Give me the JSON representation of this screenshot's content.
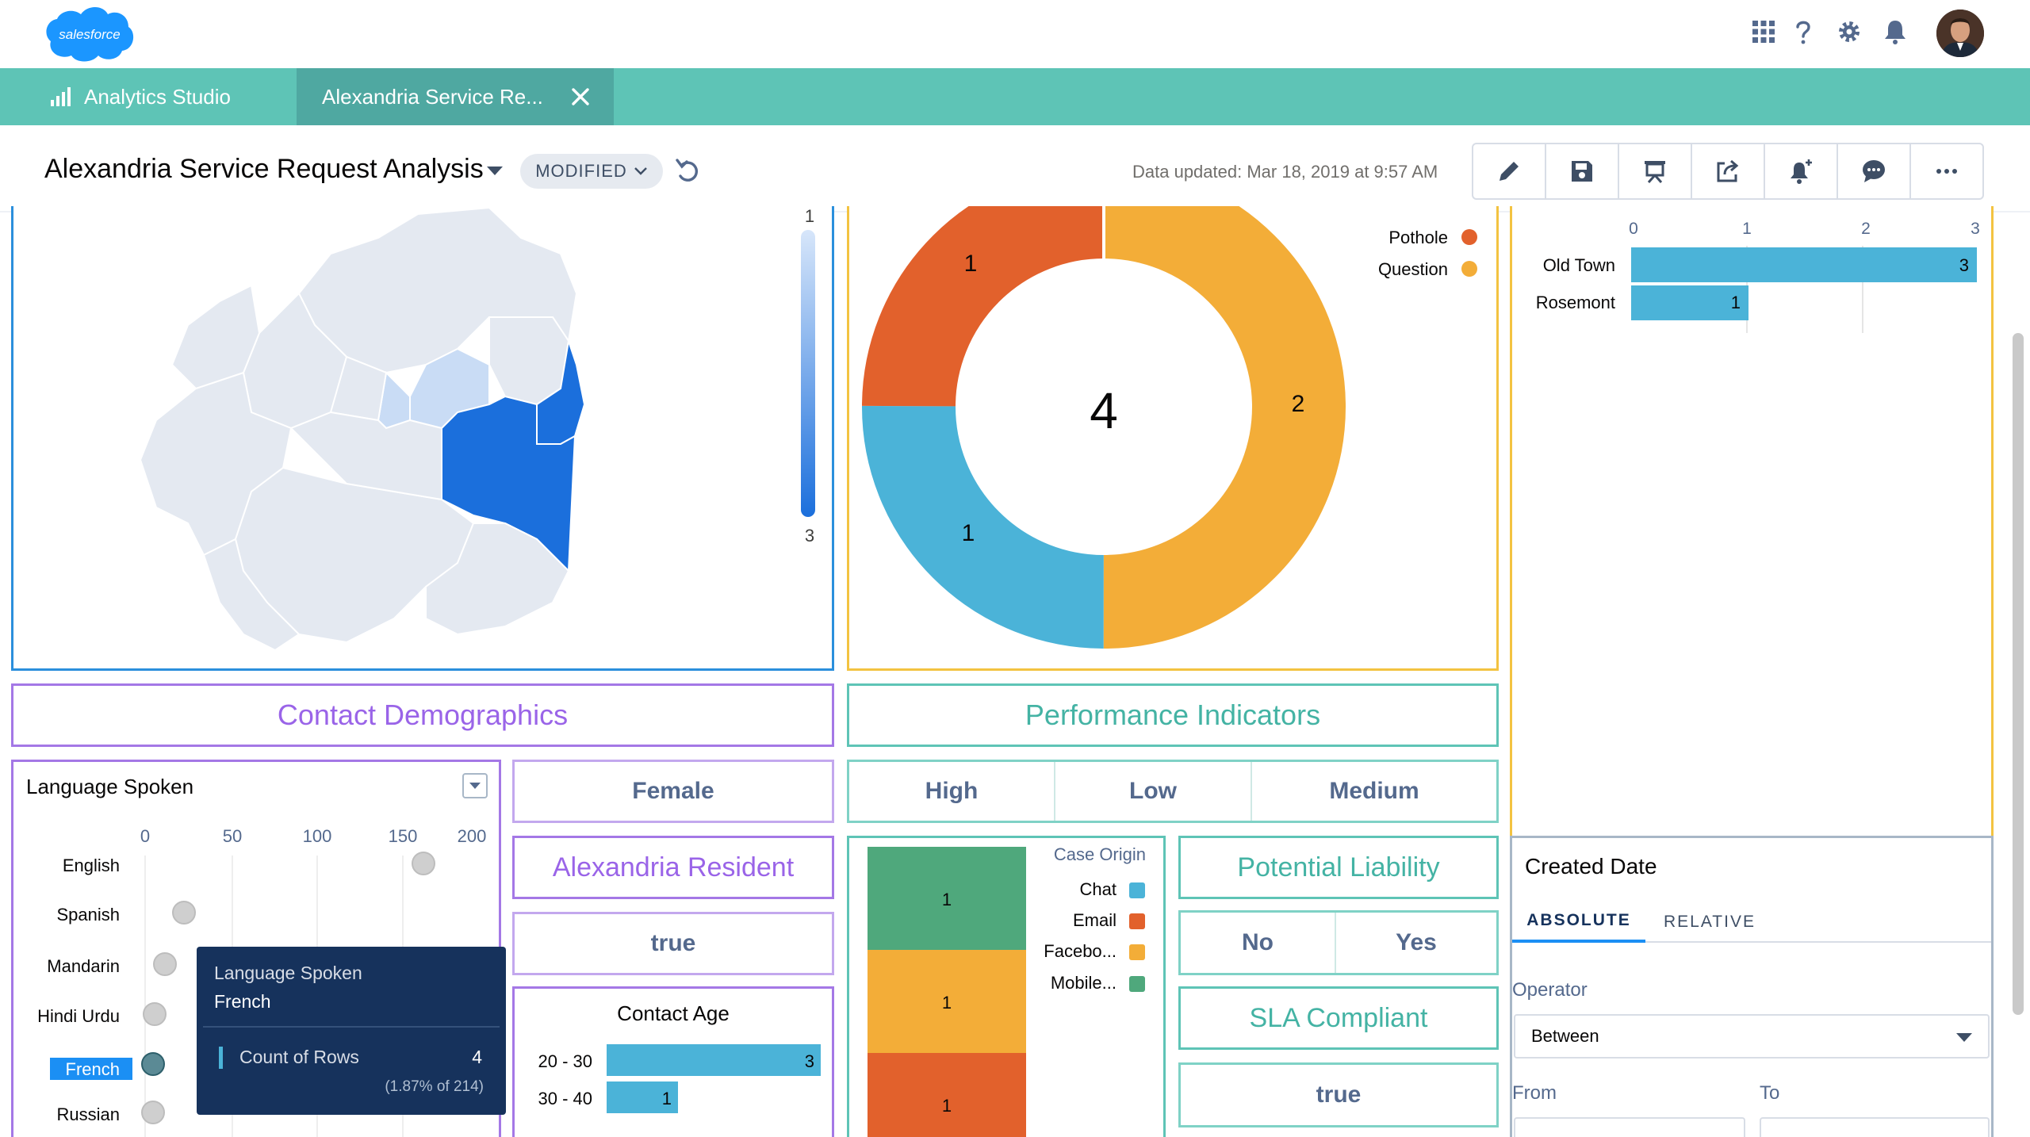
{
  "global_header": {
    "logo_text": "salesforce",
    "icons": [
      "app-launcher-icon",
      "help-icon",
      "setup-gear-icon",
      "notifications-bell-icon"
    ]
  },
  "tabs": [
    {
      "label": "Analytics Studio",
      "icon": "bar-chart-icon"
    },
    {
      "label": "Alexandria Service Re...",
      "icon": "close-icon",
      "active": true
    }
  ],
  "dashboard": {
    "title": "Alexandria Service Request Analysis",
    "status": "MODIFIED",
    "data_updated": "Data updated: Mar 18, 2019 at 9:57 AM",
    "toolbar_icons": [
      "edit-pencil-icon",
      "save-icon",
      "present-icon",
      "share-icon",
      "subscribe-bell-icon",
      "comment-icon",
      "more-icon"
    ]
  },
  "map": {
    "legend_max": "1",
    "legend_min": "3",
    "colors": {
      "highlight": "#1b6fdc",
      "light": "#c9dcf5",
      "base": "#e4e9f1"
    }
  },
  "donut": {
    "center": "4",
    "legend": [
      {
        "label": "Pothole",
        "color": "#e2612c"
      },
      {
        "label": "Question",
        "color": "#f3ad38"
      }
    ]
  },
  "neighborhood_bar": {
    "ticks": [
      "0",
      "1",
      "2",
      "3"
    ],
    "rows": [
      {
        "label": "Old Town",
        "value": "3"
      },
      {
        "label": "Rosemont",
        "value": "1"
      }
    ]
  },
  "sections": {
    "contact_demographics": "Contact Demographics",
    "performance_indicators": "Performance Indicators"
  },
  "language_chart": {
    "title": "Language Spoken",
    "ticks": [
      "0",
      "50",
      "100",
      "150",
      "200"
    ],
    "rows": [
      {
        "label": "English"
      },
      {
        "label": "Spanish"
      },
      {
        "label": "Mandarin"
      },
      {
        "label": "Hindi Urdu"
      },
      {
        "label": "French",
        "selected": true
      },
      {
        "label": "Russian"
      }
    ],
    "tooltip": {
      "dimension": "Language Spoken",
      "value": "French",
      "measure": "Count of Rows",
      "count": "4",
      "percent": "(1.87% of 214)"
    }
  },
  "demographic_filters": {
    "gender": "Female",
    "resident_header": "Alexandria Resident",
    "resident_value": "true",
    "contact_age_title": "Contact Age",
    "contact_age_rows": [
      {
        "label": "20 - 30",
        "value": "3"
      },
      {
        "label": "30 - 40",
        "value": "1"
      }
    ]
  },
  "priority_toggles": [
    "High",
    "Low",
    "Medium"
  ],
  "case_origin": {
    "title": "Case Origin",
    "legend": [
      {
        "label": "Chat",
        "color": "#4bb3d8"
      },
      {
        "label": "Email",
        "color": "#e2612c"
      },
      {
        "label": "Facebo...",
        "color": "#f3ad38"
      },
      {
        "label": "Mobile...",
        "color": "#4fa87c"
      }
    ],
    "segment_labels": [
      "1",
      "1",
      "1"
    ]
  },
  "liability": {
    "header": "Potential Liability",
    "options": [
      "No",
      "Yes"
    ],
    "sla_header": "SLA Compliant",
    "sla_value": "true"
  },
  "created_date": {
    "title": "Created Date",
    "tabs": [
      "ABSOLUTE",
      "RELATIVE"
    ],
    "operator_label": "Operator",
    "operator_value": "Between",
    "from_label": "From",
    "to_label": "To"
  }
}
